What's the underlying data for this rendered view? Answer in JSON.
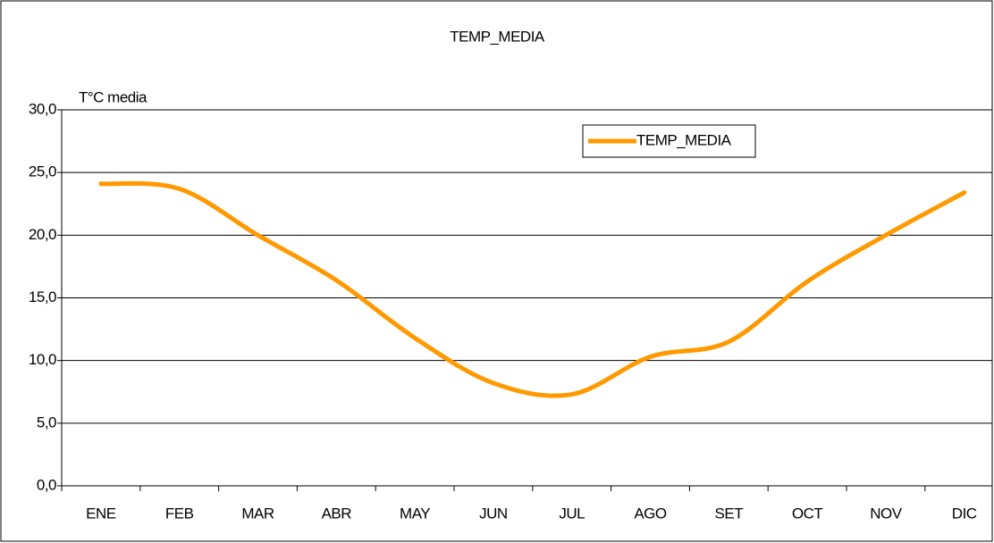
{
  "chart_data": {
    "type": "line",
    "title": "TEMP_MEDIA",
    "y_label": "T°C media",
    "categories": [
      "ENE",
      "FEB",
      "MAR",
      "ABR",
      "MAY",
      "JUN",
      "JUL",
      "AGO",
      "SET",
      "OCT",
      "NOV",
      "DIC"
    ],
    "series": [
      {
        "name": "TEMP_MEDIA",
        "color": "#ff9900",
        "values": [
          24.1,
          23.7,
          20.0,
          16.4,
          11.8,
          8.2,
          7.3,
          10.3,
          11.5,
          16.3,
          20.0,
          23.4
        ]
      }
    ],
    "ylim": [
      0,
      30
    ],
    "yticks": [
      {
        "value": 0,
        "label": "0,0"
      },
      {
        "value": 5,
        "label": "5,0"
      },
      {
        "value": 10,
        "label": "10,0"
      },
      {
        "value": 15,
        "label": "15,0"
      },
      {
        "value": 20,
        "label": "20,0"
      },
      {
        "value": 25,
        "label": "25,0"
      },
      {
        "value": 30,
        "label": "30,0"
      }
    ],
    "grid": true,
    "legend": "top-right"
  }
}
